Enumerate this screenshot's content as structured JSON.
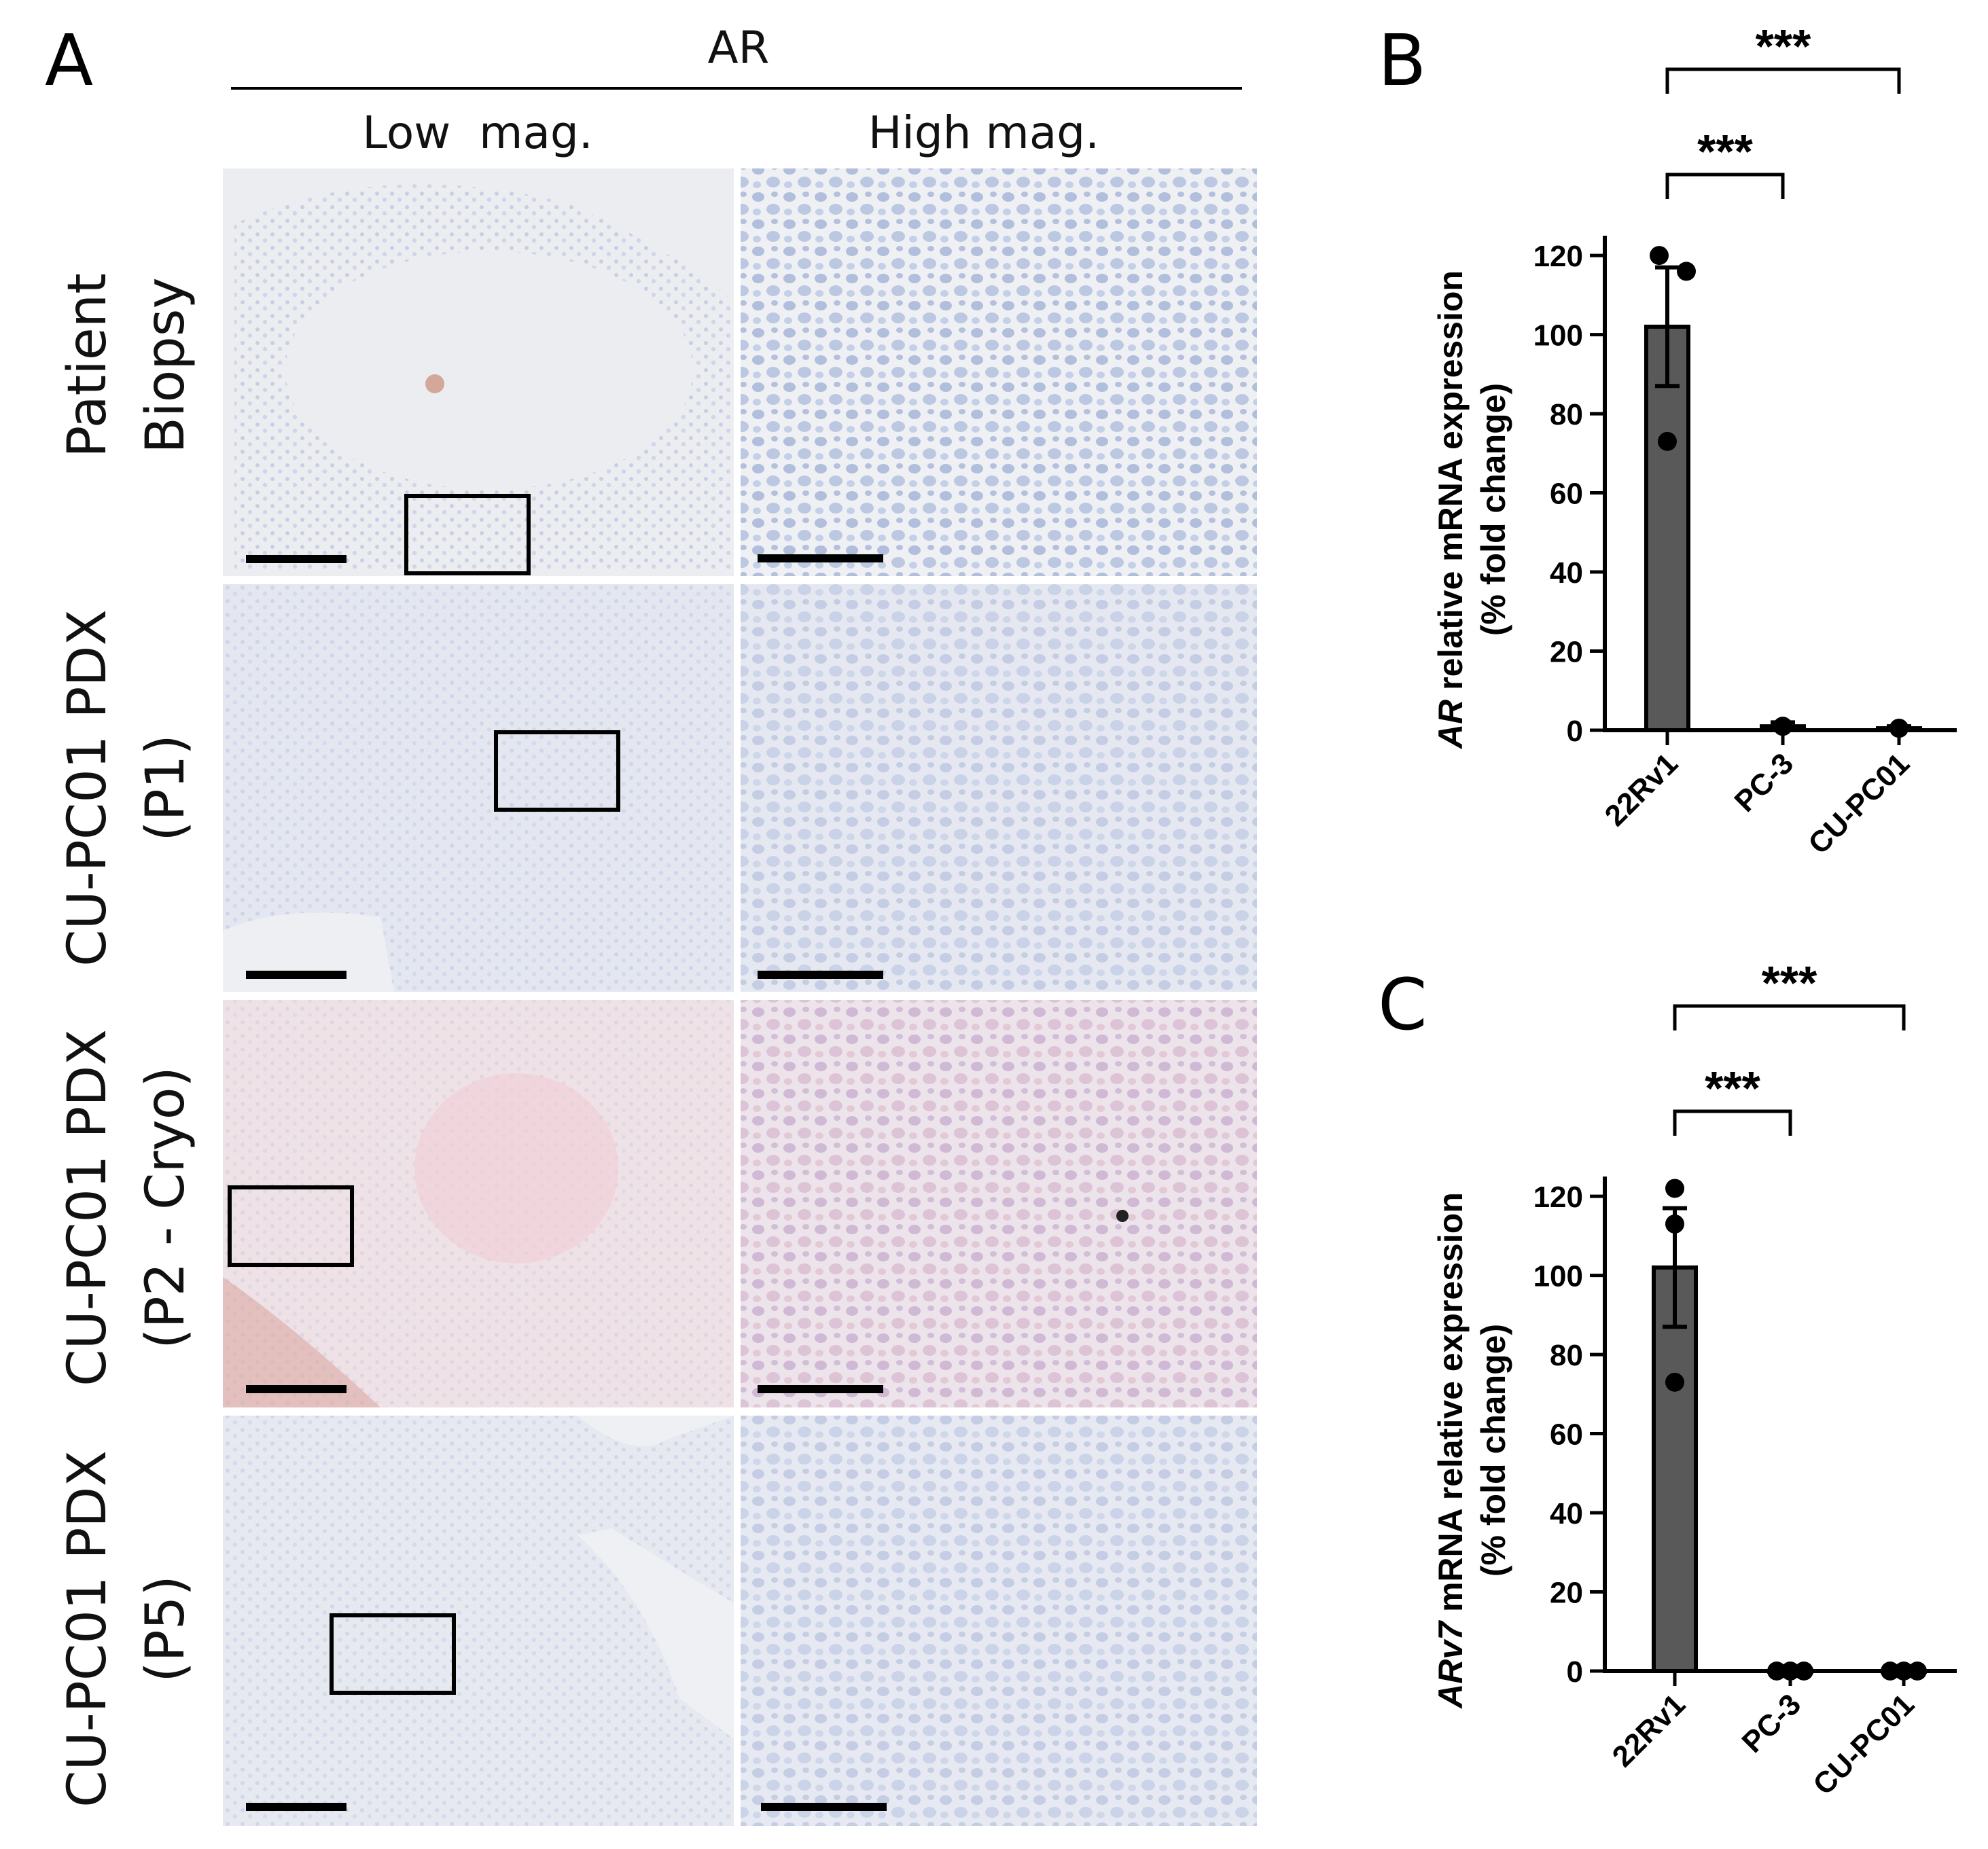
{
  "panel_a": {
    "letter": "A",
    "header": "AR",
    "col_headers": [
      "Low  mag.",
      "High mag."
    ],
    "rows": [
      {
        "line1": "Patient",
        "line2": "Biopsy",
        "bg": "#ecedf1",
        "tint": "#8ea3cf"
      },
      {
        "line1": "CU-PC01 PDX",
        "line2": "(P1)",
        "bg": "#e4e7f0",
        "tint": "#a9b6dc"
      },
      {
        "line1": "CU-PC01 PDX",
        "line2": "(P2 - Cryo)",
        "bg": "#efe2e6",
        "tint": "#c7a6c4"
      },
      {
        "line1": "CU-PC01 PDX",
        "line2": "(P5)",
        "bg": "#e7e9f0",
        "tint": "#a7b3d6"
      }
    ]
  },
  "chart_data": [
    {
      "panel": "B",
      "type": "bar",
      "ylabel_italic": "AR",
      "ylabel_rest": " relative mRNA expression",
      "ylabel_line2": "(% fold change)",
      "categories": [
        "22Rv1",
        "PC-3",
        "CU-PC01"
      ],
      "values": [
        102,
        1,
        0.5
      ],
      "errors": [
        15,
        1,
        0.5
      ],
      "points": [
        [
          120,
          116,
          73
        ],
        [
          1,
          1,
          1
        ],
        [
          0.5,
          0.5,
          0.5
        ]
      ],
      "ylim": [
        0,
        125
      ],
      "yticks": [
        0,
        20,
        40,
        60,
        80,
        100,
        120
      ],
      "bar_color": "#595959",
      "significance": [
        {
          "from": 0,
          "to": 2,
          "label": "***"
        },
        {
          "from": 0,
          "to": 1,
          "label": "***"
        }
      ]
    },
    {
      "panel": "C",
      "type": "bar",
      "ylabel_italic": "ARv7",
      "ylabel_rest": " mRNA relative expression",
      "ylabel_line2": "(% fold change)",
      "categories": [
        "22Rv1",
        "PC-3",
        "CU-PC01"
      ],
      "values": [
        102,
        0,
        0
      ],
      "errors": [
        15,
        0,
        0
      ],
      "points": [
        [
          122,
          113,
          73
        ],
        [
          0,
          0,
          0
        ],
        [
          0,
          0,
          0
        ]
      ],
      "ylim": [
        0,
        125
      ],
      "yticks": [
        0,
        20,
        40,
        60,
        80,
        100,
        120
      ],
      "bar_color": "#595959",
      "significance": [
        {
          "from": 0,
          "to": 2,
          "label": "***"
        },
        {
          "from": 0,
          "to": 1,
          "label": "***"
        }
      ]
    }
  ]
}
